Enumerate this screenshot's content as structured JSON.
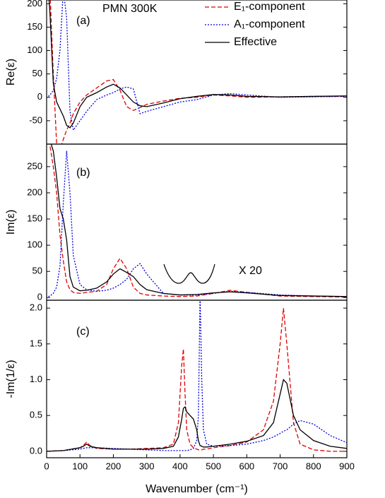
{
  "chart_data": [
    {
      "type": "line",
      "ylabel": "Re(ε)",
      "annotations": [
        "PMN 300K",
        "(a)"
      ],
      "legend": "upper-right",
      "xlim": [
        0,
        900
      ],
      "ylim": [
        -100,
        208
      ],
      "yticks": [
        -50,
        0,
        50,
        100,
        150,
        200
      ],
      "x": [
        5,
        10,
        20,
        30,
        40,
        50,
        60,
        70,
        80,
        100,
        120,
        150,
        180,
        200,
        220,
        240,
        260,
        280,
        300,
        350,
        400,
        450,
        500,
        550,
        600,
        700,
        800,
        900
      ],
      "series": [
        {
          "name": "E₁-component",
          "color": "#e00000",
          "style": "dashed",
          "values": [
            210,
            230,
            50,
            -100,
            -110,
            -90,
            -70,
            -55,
            -35,
            -10,
            5,
            20,
            35,
            38,
            15,
            -20,
            -28,
            -22,
            -15,
            -8,
            -2,
            0,
            5,
            3,
            0,
            1,
            2,
            2
          ]
        },
        {
          "name": "A₁-component",
          "color": "#0000e0",
          "style": "dotted",
          "values": [
            2,
            5,
            15,
            40,
            100,
            230,
            170,
            -30,
            -70,
            -50,
            -30,
            -5,
            5,
            10,
            18,
            22,
            18,
            -35,
            -30,
            -20,
            -10,
            -5,
            5,
            8,
            5,
            0,
            1,
            2
          ]
        },
        {
          "name": "Effective",
          "color": "#000000",
          "style": "solid",
          "values": [
            230,
            180,
            30,
            -10,
            -25,
            -40,
            -60,
            -65,
            -55,
            -20,
            0,
            10,
            22,
            28,
            20,
            5,
            -10,
            -18,
            -20,
            -12,
            -3,
            2,
            6,
            5,
            2,
            1,
            2,
            3
          ]
        }
      ]
    },
    {
      "type": "line",
      "ylabel": "Im(ε)",
      "annotations": [
        "(b)",
        "X 20"
      ],
      "xlim": [
        0,
        900
      ],
      "ylim": [
        -5,
        293
      ],
      "yticks": [
        0,
        50,
        100,
        150,
        200,
        250
      ],
      "x": [
        5,
        10,
        20,
        30,
        40,
        50,
        60,
        70,
        80,
        100,
        120,
        150,
        180,
        200,
        220,
        240,
        260,
        280,
        300,
        350,
        400,
        450,
        500,
        550,
        600,
        700,
        800,
        900
      ],
      "series": [
        {
          "color": "#e00000",
          "style": "dashed",
          "values": [
            300,
            290,
            250,
            200,
            120,
            70,
            30,
            15,
            10,
            8,
            10,
            12,
            25,
            55,
            75,
            55,
            20,
            8,
            5,
            3,
            2,
            3,
            8,
            14,
            10,
            3,
            2,
            1
          ]
        },
        {
          "color": "#0000e0",
          "style": "dotted",
          "values": [
            2,
            3,
            8,
            20,
            60,
            180,
            280,
            200,
            80,
            25,
            15,
            12,
            14,
            18,
            25,
            35,
            55,
            65,
            45,
            8,
            5,
            5,
            8,
            12,
            10,
            5,
            3,
            2
          ]
        },
        {
          "color": "#000000",
          "style": "solid",
          "values": [
            300,
            300,
            280,
            230,
            170,
            150,
            110,
            40,
            20,
            13,
            14,
            18,
            30,
            45,
            55,
            48,
            40,
            25,
            15,
            8,
            5,
            6,
            9,
            11,
            9,
            4,
            3,
            2
          ]
        }
      ]
    },
    {
      "type": "line",
      "ylabel": "-Im(1/ε)",
      "annotations": [
        "(c)"
      ],
      "xlabel": "Wavenumber (cm⁻¹)",
      "xlim": [
        0,
        900
      ],
      "xticks": [
        0,
        100,
        200,
        300,
        400,
        500,
        600,
        700,
        800,
        900
      ],
      "ylim": [
        -0.09,
        2.11
      ],
      "yticks": [
        {
          "value": 0,
          "label": "0.0"
        },
        {
          "value": 0.5,
          "label": "0.5"
        },
        {
          "value": 1,
          "label": "1.0"
        },
        {
          "value": 1.5,
          "label": "1.5"
        },
        {
          "value": 2,
          "label": "2.0"
        }
      ],
      "x": [
        0,
        50,
        100,
        110,
        120,
        130,
        150,
        200,
        250,
        300,
        350,
        380,
        395,
        405,
        410,
        415,
        420,
        430,
        440,
        450,
        455,
        460,
        465,
        470,
        480,
        500,
        550,
        600,
        650,
        680,
        700,
        710,
        720,
        740,
        760,
        800,
        850,
        900
      ],
      "series": [
        {
          "color": "#e00000",
          "style": "dashed",
          "values": [
            0,
            0.01,
            0.05,
            0.08,
            0.13,
            0.08,
            0.04,
            0.03,
            0.03,
            0.04,
            0.05,
            0.1,
            0.4,
            1.2,
            1.43,
            0.8,
            0.3,
            0.1,
            0.05,
            0.03,
            0.02,
            0.02,
            0.02,
            0.03,
            0.03,
            0.05,
            0.08,
            0.13,
            0.3,
            0.7,
            1.5,
            2,
            1.5,
            0.4,
            0.1,
            0.02,
            0,
            0
          ]
        },
        {
          "color": "#0000e0",
          "style": "dotted",
          "values": [
            0,
            0.01,
            0.03,
            0.04,
            0.05,
            0.05,
            0.05,
            0.04,
            0.03,
            0.02,
            0.01,
            0.01,
            0.01,
            0.01,
            0.01,
            0.01,
            0.01,
            0.02,
            0.04,
            0.15,
            0.5,
            2.2,
            1,
            0.3,
            0.1,
            0.07,
            0.08,
            0.1,
            0.15,
            0.2,
            0.25,
            0.28,
            0.3,
            0.38,
            0.43,
            0.38,
            0.22,
            0.12
          ]
        },
        {
          "color": "#000000",
          "style": "solid",
          "values": [
            0,
            0.01,
            0.05,
            0.07,
            0.1,
            0.07,
            0.05,
            0.03,
            0.03,
            0.03,
            0.04,
            0.07,
            0.2,
            0.45,
            0.6,
            0.62,
            0.55,
            0.5,
            0.45,
            0.3,
            0.15,
            0.08,
            0.07,
            0.06,
            0.06,
            0.07,
            0.1,
            0.14,
            0.22,
            0.4,
            0.8,
            1,
            0.95,
            0.5,
            0.3,
            0.15,
            0.07,
            0.04
          ]
        }
      ]
    }
  ]
}
